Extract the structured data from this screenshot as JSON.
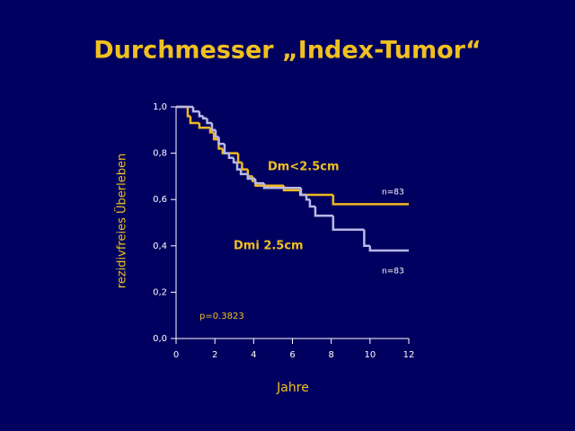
{
  "chart_data": {
    "type": "step",
    "title": "Durchmesser „Index-Tumor“",
    "xlabel": "Jahre",
    "ylabel": "rezidivfreies Überleben",
    "xlim": [
      0,
      12
    ],
    "ylim": [
      0,
      1
    ],
    "xticks": [
      0,
      2,
      4,
      6,
      8,
      10,
      12
    ],
    "yticks": [
      {
        "value": 0,
        "label": "0,0"
      },
      {
        "value": 0.2,
        "label": "0,2"
      },
      {
        "value": 0.4,
        "label": "0,4"
      },
      {
        "value": 0.6,
        "label": "0,6"
      },
      {
        "value": 0.8,
        "label": "0,8"
      },
      {
        "value": 1,
        "label": "1,0"
      }
    ],
    "series": [
      {
        "name": "Dm<2.5cm",
        "color": "#f0b820",
        "x": [
          0,
          0.6,
          0.74,
          1.2,
          1.76,
          1.95,
          2.2,
          2.4,
          3.2,
          3.4,
          3.7,
          3.94,
          4.1,
          5.56,
          6.4,
          8.1,
          12
        ],
        "values": [
          1,
          0.96,
          0.93,
          0.91,
          0.89,
          0.86,
          0.82,
          0.8,
          0.76,
          0.73,
          0.7,
          0.68,
          0.66,
          0.64,
          0.62,
          0.58,
          0.58
        ]
      },
      {
        "name": "Dmi 2.5cm",
        "color": "#b8b8e8",
        "x": [
          0,
          0.88,
          1.2,
          1.4,
          1.6,
          1.85,
          2.04,
          2.2,
          2.5,
          2.73,
          2.97,
          3.15,
          3.34,
          3.7,
          4.08,
          4.54,
          6.44,
          6.72,
          6.9,
          7.18,
          8.1,
          9.7,
          10,
          12
        ],
        "values": [
          1,
          0.98,
          0.96,
          0.95,
          0.93,
          0.9,
          0.87,
          0.84,
          0.8,
          0.78,
          0.76,
          0.73,
          0.71,
          0.69,
          0.67,
          0.65,
          0.62,
          0.6,
          0.57,
          0.53,
          0.47,
          0.4,
          0.38,
          0.38
        ]
      }
    ],
    "annotations": [
      "n=83",
      "n=83",
      "p=0.3823"
    ]
  }
}
